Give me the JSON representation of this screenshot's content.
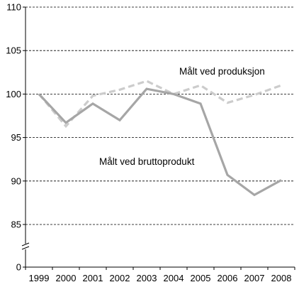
{
  "chart_data": {
    "type": "line",
    "title": "",
    "xlabel": "",
    "ylabel": "",
    "x": [
      "1999",
      "2000",
      "2001",
      "2002",
      "2003",
      "2004",
      "2005",
      "2006",
      "2007",
      "2008"
    ],
    "ylim": [
      85,
      110
    ],
    "yaxis_break": true,
    "yticks": [
      "0",
      "85",
      "90",
      "95",
      "100",
      "105",
      "110"
    ],
    "grid": "horizontal dashed",
    "series": [
      {
        "name": "Målt ved produksjon",
        "style": "dashed",
        "color": "#cccccc",
        "values": [
          100,
          96.3,
          99.8,
          100.5,
          101.5,
          100.0,
          101.0,
          99.0,
          99.9,
          101.0
        ]
      },
      {
        "name": "Målt ved bruttoprodukt",
        "style": "solid",
        "color": "#a6a6a6",
        "values": [
          100,
          96.7,
          98.9,
          97.0,
          100.6,
          100.0,
          98.9,
          90.7,
          88.4,
          90.1
        ]
      }
    ]
  }
}
